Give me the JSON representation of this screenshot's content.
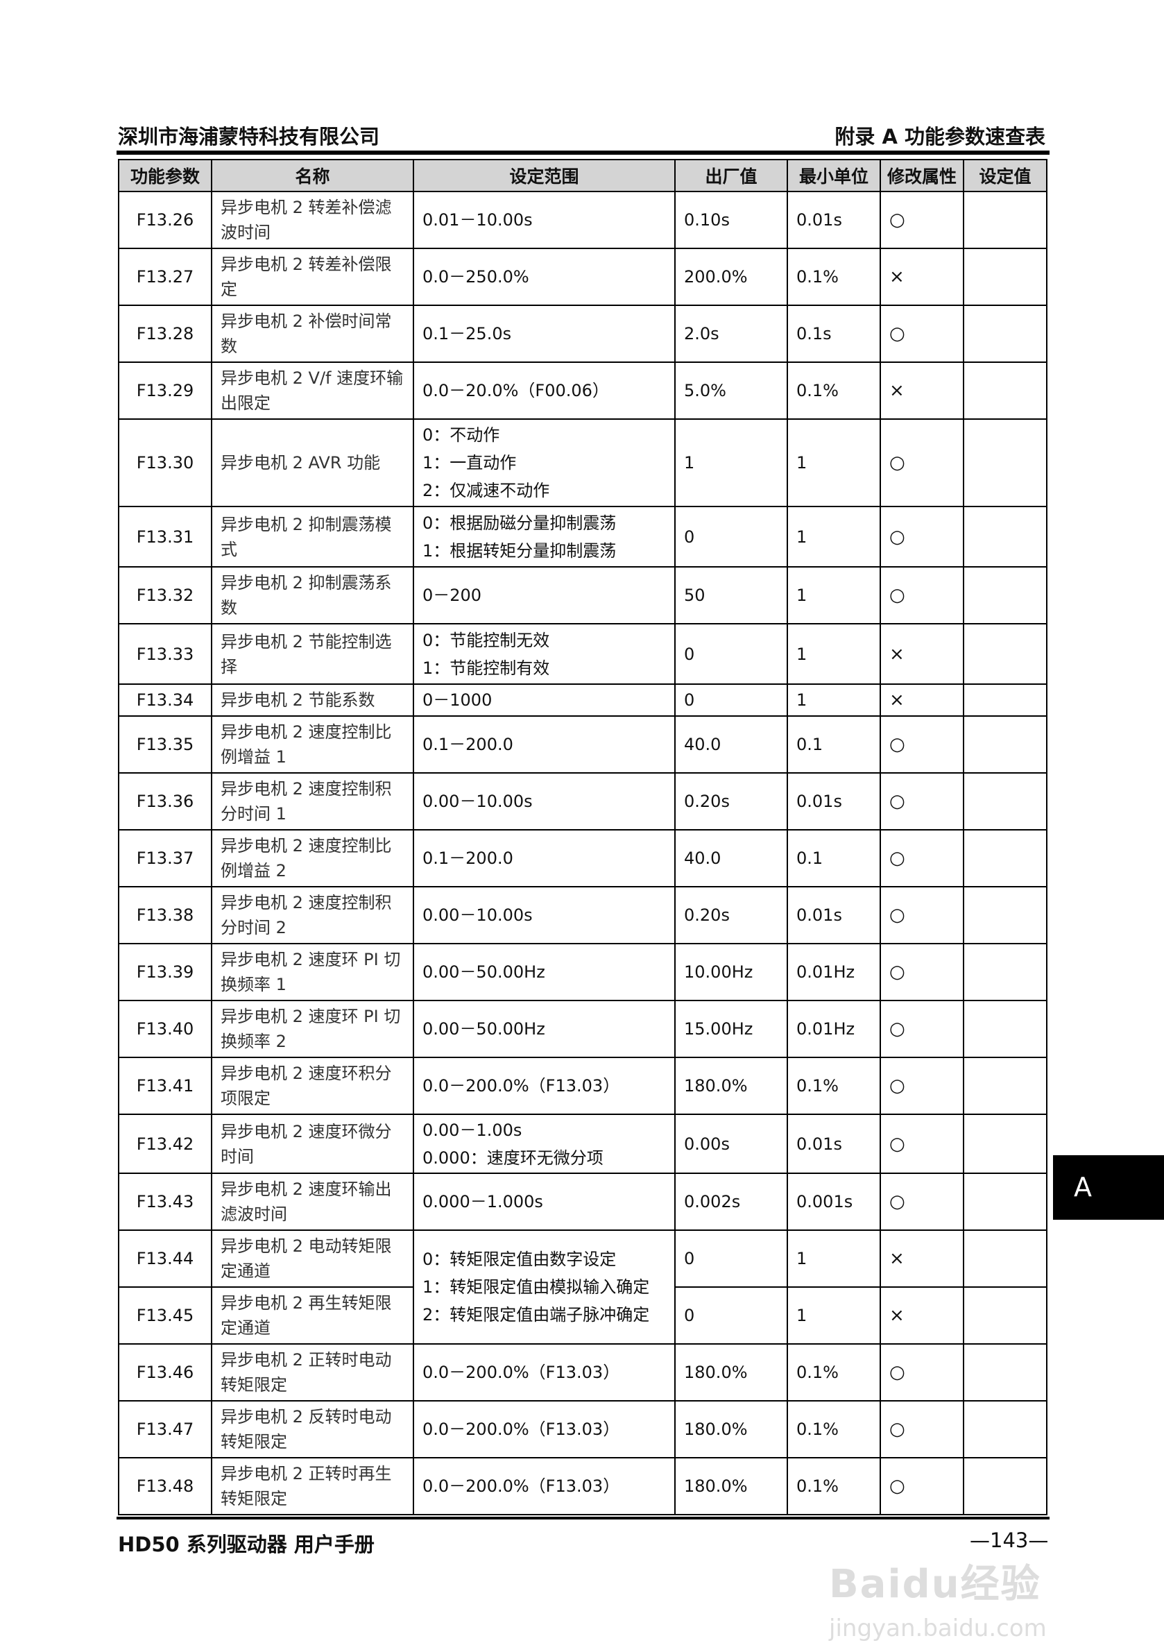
{
  "header": {
    "company": "深圳市海浦蒙特科技有限公司",
    "section": "附录 A 功能参数速查表"
  },
  "table": {
    "columns": [
      "功能参数",
      "名称",
      "设定范围",
      "出厂值",
      "最小单位",
      "修改属性",
      "设定值"
    ],
    "rows": [
      {
        "code": "F13.26",
        "name": "异步电机 2 转差补偿滤波时间",
        "range": [
          "0.01－10.00s"
        ],
        "default": "0.10s",
        "unit": "0.01s",
        "attr": "○",
        "h": 82
      },
      {
        "code": "F13.27",
        "name": "异步电机 2 转差补偿限定",
        "range": [
          "0.0－250.0%"
        ],
        "default": "200.0%",
        "unit": "0.1%",
        "attr": "×",
        "h": 82
      },
      {
        "code": "F13.28",
        "name": "异步电机 2 补偿时间常数",
        "range": [
          "0.1－25.0s"
        ],
        "default": "2.0s",
        "unit": "0.1s",
        "attr": "○",
        "h": 82
      },
      {
        "code": "F13.29",
        "name": "异步电机 2 V/f 速度环输出限定",
        "range": [
          "0.0－20.0%（F00.06）"
        ],
        "default": "5.0%",
        "unit": "0.1%",
        "attr": "×",
        "h": 82
      },
      {
        "code": "F13.30",
        "name": "异步电机 2 AVR 功能",
        "range": [
          "0：不动作",
          "1：一直动作",
          "2：仅减速不动作"
        ],
        "default": "1",
        "unit": "1",
        "attr": "○",
        "h": 126
      },
      {
        "code": "F13.31",
        "name": "异步电机 2 抑制震荡模式",
        "range": [
          "0：根据励磁分量抑制震荡",
          "1：根据转矩分量抑制震荡"
        ],
        "default": "0",
        "unit": "1",
        "attr": "○",
        "h": 87
      },
      {
        "code": "F13.32",
        "name": "异步电机 2 抑制震荡系数",
        "range": [
          "0－200"
        ],
        "default": "50",
        "unit": "1",
        "attr": "○",
        "h": 82
      },
      {
        "code": "F13.33",
        "name": "异步电机 2 节能控制选择",
        "range": [
          "0：节能控制无效",
          "1：节能控制有效"
        ],
        "default": "0",
        "unit": "1",
        "attr": "×",
        "h": 87
      },
      {
        "code": "F13.34",
        "name": "异步电机 2 节能系数",
        "range": [
          "0－1000"
        ],
        "default": "0",
        "unit": "1",
        "attr": "×",
        "h": 46
      },
      {
        "code": "F13.35",
        "name": "异步电机 2 速度控制比例增益 1",
        "range": [
          "0.1－200.0"
        ],
        "default": "40.0",
        "unit": "0.1",
        "attr": "○",
        "h": 82
      },
      {
        "code": "F13.36",
        "name": "异步电机 2 速度控制积分时间 1",
        "range": [
          "0.00－10.00s"
        ],
        "default": "0.20s",
        "unit": "0.01s",
        "attr": "○",
        "h": 82
      },
      {
        "code": "F13.37",
        "name": "异步电机 2 速度控制比例增益 2",
        "range": [
          "0.1－200.0"
        ],
        "default": "40.0",
        "unit": "0.1",
        "attr": "○",
        "h": 82
      },
      {
        "code": "F13.38",
        "name": "异步电机 2 速度控制积分时间 2",
        "range": [
          "0.00－10.00s"
        ],
        "default": "0.20s",
        "unit": "0.01s",
        "attr": "○",
        "h": 82
      },
      {
        "code": "F13.39",
        "name": "异步电机 2 速度环 PI 切换频率 1",
        "range": [
          "0.00－50.00Hz"
        ],
        "default": "10.00Hz",
        "unit": "0.01Hz",
        "attr": "○",
        "h": 82
      },
      {
        "code": "F13.40",
        "name": "异步电机 2 速度环 PI 切换频率 2",
        "range": [
          "0.00－50.00Hz"
        ],
        "default": "15.00Hz",
        "unit": "0.01Hz",
        "attr": "○",
        "h": 82
      },
      {
        "code": "F13.41",
        "name": "异步电机 2 速度环积分项限定",
        "range": [
          "0.0－200.0%（F13.03）"
        ],
        "default": "180.0%",
        "unit": "0.1%",
        "attr": "○",
        "h": 82
      },
      {
        "code": "F13.42",
        "name": "异步电机 2 速度环微分时间",
        "range": [
          "0.00－1.00s",
          "0.000：速度环无微分项"
        ],
        "default": "0.00s",
        "unit": "0.01s",
        "attr": "○",
        "h": 85
      },
      {
        "code": "F13.43",
        "name": "异步电机 2 速度环输出滤波时间",
        "range": [
          "0.000－1.000s"
        ],
        "default": "0.002s",
        "unit": "0.001s",
        "attr": "○",
        "h": 82
      },
      {
        "code": "F13.44",
        "name": "异步电机 2 电动转矩限定通道",
        "range": [
          "0：转矩限定值由数字设定",
          "1：转矩限定值由模拟输入确定",
          "2：转矩限定值由端子脉冲确定"
        ],
        "range_rowspan": 2,
        "default": "0",
        "unit": "1",
        "attr": "×",
        "h": 82
      },
      {
        "code": "F13.45",
        "name": "异步电机 2 再生转矩限定通道",
        "default": "0",
        "unit": "1",
        "attr": "×",
        "h": 82
      },
      {
        "code": "F13.46",
        "name": "异步电机 2 正转时电动转矩限定",
        "range": [
          "0.0－200.0%（F13.03）"
        ],
        "default": "180.0%",
        "unit": "0.1%",
        "attr": "○",
        "h": 82
      },
      {
        "code": "F13.47",
        "name": "异步电机 2 反转时电动转矩限定",
        "range": [
          "0.0－200.0%（F13.03）"
        ],
        "default": "180.0%",
        "unit": "0.1%",
        "attr": "○",
        "h": 82
      },
      {
        "code": "F13.48",
        "name": "异步电机 2 正转时再生转矩限定",
        "range": [
          "0.0－200.0%（F13.03）"
        ],
        "default": "180.0%",
        "unit": "0.1%",
        "attr": "○",
        "h": 82
      }
    ]
  },
  "side_tab": "A",
  "footer": {
    "manual": "HD50 系列驱动器  用户手册",
    "page": "—143—"
  },
  "watermark": {
    "brand": "Baidu经验",
    "url": "jingyan.baidu.com"
  }
}
